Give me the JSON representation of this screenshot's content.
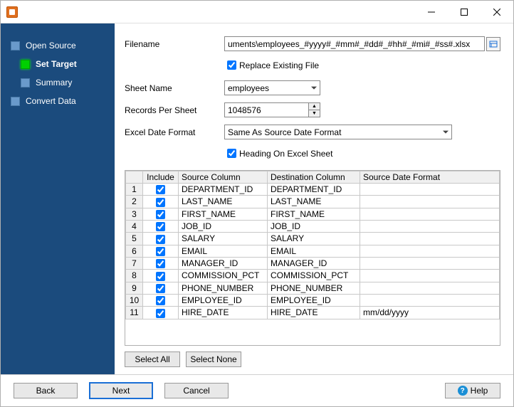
{
  "titlebar": {
    "title": ""
  },
  "sidebar": {
    "items": [
      {
        "label": "Open Source",
        "active": false,
        "sub": false
      },
      {
        "label": "Set Target",
        "active": true,
        "sub": true
      },
      {
        "label": "Summary",
        "active": false,
        "sub": true
      },
      {
        "label": "Convert Data",
        "active": false,
        "sub": false
      }
    ],
    "bg_color": "#1b4b7d"
  },
  "form": {
    "filename_label": "Filename",
    "filename_value": "uments\\employees_#yyyy#_#mm#_#dd#_#hh#_#mi#_#ss#.xlsx",
    "replace_existing_label": "Replace Existing File",
    "replace_existing_checked": true,
    "sheet_name_label": "Sheet Name",
    "sheet_name_value": "employees",
    "records_label": "Records Per Sheet",
    "records_value": "1048576",
    "date_format_label": "Excel Date Format",
    "date_format_value": "Same As Source Date Format",
    "heading_label": "Heading On Excel Sheet",
    "heading_checked": true
  },
  "table": {
    "headers": {
      "num": "",
      "include": "Include",
      "source": "Source Column",
      "dest": "Destination Column",
      "fmt": "Source Date Format"
    },
    "rows": [
      {
        "n": "1",
        "inc": true,
        "src": "DEPARTMENT_ID",
        "dst": "DEPARTMENT_ID",
        "fmt": ""
      },
      {
        "n": "2",
        "inc": true,
        "src": "LAST_NAME",
        "dst": "LAST_NAME",
        "fmt": ""
      },
      {
        "n": "3",
        "inc": true,
        "src": "FIRST_NAME",
        "dst": "FIRST_NAME",
        "fmt": ""
      },
      {
        "n": "4",
        "inc": true,
        "src": "JOB_ID",
        "dst": "JOB_ID",
        "fmt": ""
      },
      {
        "n": "5",
        "inc": true,
        "src": "SALARY",
        "dst": "SALARY",
        "fmt": ""
      },
      {
        "n": "6",
        "inc": true,
        "src": "EMAIL",
        "dst": "EMAIL",
        "fmt": ""
      },
      {
        "n": "7",
        "inc": true,
        "src": "MANAGER_ID",
        "dst": "MANAGER_ID",
        "fmt": ""
      },
      {
        "n": "8",
        "inc": true,
        "src": "COMMISSION_PCT",
        "dst": "COMMISSION_PCT",
        "fmt": ""
      },
      {
        "n": "9",
        "inc": true,
        "src": "PHONE_NUMBER",
        "dst": "PHONE_NUMBER",
        "fmt": ""
      },
      {
        "n": "10",
        "inc": true,
        "src": "EMPLOYEE_ID",
        "dst": "EMPLOYEE_ID",
        "fmt": ""
      },
      {
        "n": "11",
        "inc": true,
        "src": "HIRE_DATE",
        "dst": "HIRE_DATE",
        "fmt": "mm/dd/yyyy"
      }
    ]
  },
  "buttons": {
    "select_all": "Select All",
    "select_none": "Select None",
    "back": "Back",
    "next": "Next",
    "cancel": "Cancel",
    "help": "Help"
  }
}
